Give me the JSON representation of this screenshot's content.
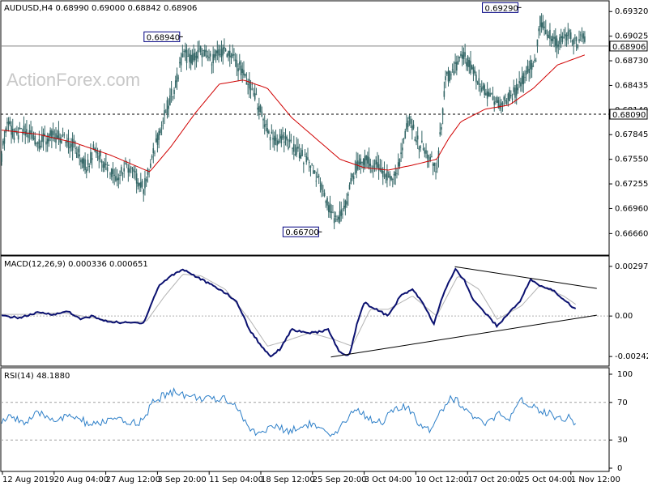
{
  "chart_data": [
    {
      "type": "candlestick",
      "title": "AUDUSD,H4  0.68990 0.69000 0.68842 0.68906",
      "ylim": [
        0.6645,
        0.694
      ],
      "yticks": [
        "0.69320",
        "0.69025",
        "0.68730",
        "0.68435",
        "0.68140",
        "0.67845",
        "0.67550",
        "0.67255",
        "0.66960",
        "0.66660"
      ],
      "hlines": [
        {
          "value": 0.68906,
          "label": "0.68906",
          "style": "solid",
          "color": "#808080"
        },
        {
          "value": 0.6809,
          "label": "0.68090",
          "style": "dashed",
          "color": "#000000"
        }
      ],
      "annotations": [
        {
          "text": "0.68940",
          "x": 0.3,
          "y": 0.6894
        },
        {
          "text": "0.66700",
          "x": 0.53,
          "y": 0.667
        },
        {
          "text": "0.69290",
          "x": 0.86,
          "y": 0.6929
        }
      ],
      "price_anchors": [
        [
          0,
          0.676
        ],
        [
          0.01,
          0.6805
        ],
        [
          0.02,
          0.678
        ],
        [
          0.04,
          0.679
        ],
        [
          0.06,
          0.6775
        ],
        [
          0.08,
          0.6782
        ],
        [
          0.1,
          0.6782
        ],
        [
          0.12,
          0.677
        ],
        [
          0.14,
          0.6745
        ],
        [
          0.155,
          0.677
        ],
        [
          0.17,
          0.675
        ],
        [
          0.19,
          0.6735
        ],
        [
          0.21,
          0.6745
        ],
        [
          0.225,
          0.673
        ],
        [
          0.235,
          0.672
        ],
        [
          0.245,
          0.6745
        ],
        [
          0.26,
          0.6785
        ],
        [
          0.275,
          0.682
        ],
        [
          0.29,
          0.685
        ],
        [
          0.3,
          0.688
        ],
        [
          0.315,
          0.6875
        ],
        [
          0.33,
          0.6885
        ],
        [
          0.345,
          0.6875
        ],
        [
          0.36,
          0.688
        ],
        [
          0.375,
          0.6885
        ],
        [
          0.39,
          0.687
        ],
        [
          0.405,
          0.685
        ],
        [
          0.42,
          0.683
        ],
        [
          0.435,
          0.68
        ],
        [
          0.45,
          0.6775
        ],
        [
          0.465,
          0.678
        ],
        [
          0.48,
          0.677
        ],
        [
          0.495,
          0.676
        ],
        [
          0.51,
          0.675
        ],
        [
          0.525,
          0.673
        ],
        [
          0.54,
          0.67
        ],
        [
          0.555,
          0.668
        ],
        [
          0.57,
          0.67
        ],
        [
          0.58,
          0.6735
        ],
        [
          0.595,
          0.6755
        ],
        [
          0.61,
          0.675
        ],
        [
          0.625,
          0.6745
        ],
        [
          0.64,
          0.6735
        ],
        [
          0.655,
          0.674
        ],
        [
          0.665,
          0.678
        ],
        [
          0.675,
          0.68
        ],
        [
          0.69,
          0.6775
        ],
        [
          0.705,
          0.676
        ],
        [
          0.72,
          0.674
        ],
        [
          0.735,
          0.685
        ],
        [
          0.75,
          0.6865
        ],
        [
          0.765,
          0.688
        ],
        [
          0.78,
          0.686
        ],
        [
          0.795,
          0.684
        ],
        [
          0.81,
          0.683
        ],
        [
          0.825,
          0.682
        ],
        [
          0.84,
          0.683
        ],
        [
          0.855,
          0.684
        ],
        [
          0.87,
          0.686
        ],
        [
          0.885,
          0.688
        ],
        [
          0.89,
          0.692
        ],
        [
          0.905,
          0.6905
        ],
        [
          0.92,
          0.6895
        ],
        [
          0.935,
          0.6905
        ],
        [
          0.95,
          0.6895
        ],
        [
          0.965,
          0.69
        ]
      ],
      "ma_anchors": [
        [
          0,
          0.679
        ],
        [
          0.06,
          0.6785
        ],
        [
          0.12,
          0.6775
        ],
        [
          0.18,
          0.676
        ],
        [
          0.245,
          0.674
        ],
        [
          0.28,
          0.677
        ],
        [
          0.32,
          0.681
        ],
        [
          0.36,
          0.6845
        ],
        [
          0.4,
          0.685
        ],
        [
          0.44,
          0.684
        ],
        [
          0.48,
          0.6805
        ],
        [
          0.52,
          0.678
        ],
        [
          0.56,
          0.6755
        ],
        [
          0.6,
          0.6745
        ],
        [
          0.64,
          0.6742
        ],
        [
          0.68,
          0.6748
        ],
        [
          0.72,
          0.6755
        ],
        [
          0.74,
          0.678
        ],
        [
          0.76,
          0.68
        ],
        [
          0.8,
          0.6815
        ],
        [
          0.84,
          0.682
        ],
        [
          0.88,
          0.684
        ],
        [
          0.92,
          0.6868
        ],
        [
          0.965,
          0.688
        ]
      ]
    },
    {
      "type": "line",
      "title": "MACD(12,26,9) 0.000336 0.000651",
      "ylim": [
        -0.0028,
        0.0033
      ],
      "yticks": [
        "0.00297",
        "0.00",
        "-0.00242"
      ],
      "macd_anchors": [
        [
          0,
          0.0
        ],
        [
          0.03,
          -0.0001
        ],
        [
          0.06,
          0.0002
        ],
        [
          0.09,
          0.0001
        ],
        [
          0.11,
          0.0003
        ],
        [
          0.13,
          -0.0002
        ],
        [
          0.15,
          0.0
        ],
        [
          0.17,
          -0.0003
        ],
        [
          0.2,
          -0.0004
        ],
        [
          0.235,
          -0.0004
        ],
        [
          0.26,
          0.0018
        ],
        [
          0.28,
          0.0024
        ],
        [
          0.3,
          0.0028
        ],
        [
          0.32,
          0.0024
        ],
        [
          0.34,
          0.002
        ],
        [
          0.37,
          0.0014
        ],
        [
          0.39,
          0.0008
        ],
        [
          0.41,
          -0.0008
        ],
        [
          0.43,
          -0.0018
        ],
        [
          0.445,
          -0.0024
        ],
        [
          0.46,
          -0.002
        ],
        [
          0.48,
          -0.0008
        ],
        [
          0.5,
          -0.001
        ],
        [
          0.52,
          -0.001
        ],
        [
          0.54,
          -0.0008
        ],
        [
          0.56,
          -0.0022
        ],
        [
          0.575,
          -0.0024
        ],
        [
          0.59,
          -0.0002
        ],
        [
          0.6,
          0.0008
        ],
        [
          0.62,
          0.0004
        ],
        [
          0.64,
          0.0
        ],
        [
          0.66,
          0.0012
        ],
        [
          0.68,
          0.0016
        ],
        [
          0.7,
          0.0006
        ],
        [
          0.715,
          -0.0005
        ],
        [
          0.73,
          0.0012
        ],
        [
          0.75,
          0.0028
        ],
        [
          0.765,
          0.0022
        ],
        [
          0.78,
          0.001
        ],
        [
          0.8,
          0.0002
        ],
        [
          0.82,
          -0.0006
        ],
        [
          0.84,
          0.0002
        ],
        [
          0.86,
          0.001
        ],
        [
          0.875,
          0.0022
        ],
        [
          0.89,
          0.0018
        ],
        [
          0.91,
          0.0016
        ],
        [
          0.93,
          0.001
        ],
        [
          0.95,
          0.0004
        ]
      ],
      "signal_anchors": [
        [
          0,
          0.0001
        ],
        [
          0.05,
          0.0001
        ],
        [
          0.1,
          0.0002
        ],
        [
          0.15,
          -0.0001
        ],
        [
          0.2,
          -0.0004
        ],
        [
          0.24,
          -0.0003
        ],
        [
          0.27,
          0.0012
        ],
        [
          0.3,
          0.0025
        ],
        [
          0.33,
          0.0024
        ],
        [
          0.37,
          0.0016
        ],
        [
          0.41,
          -0.0002
        ],
        [
          0.44,
          -0.0018
        ],
        [
          0.47,
          -0.0015
        ],
        [
          0.51,
          -0.001
        ],
        [
          0.55,
          -0.0014
        ],
        [
          0.58,
          -0.0018
        ],
        [
          0.61,
          0.0004
        ],
        [
          0.64,
          0.0004
        ],
        [
          0.68,
          0.0012
        ],
        [
          0.72,
          0.0
        ],
        [
          0.755,
          0.0024
        ],
        [
          0.79,
          0.0016
        ],
        [
          0.82,
          -0.0002
        ],
        [
          0.86,
          0.0006
        ],
        [
          0.89,
          0.0018
        ],
        [
          0.93,
          0.0012
        ],
        [
          0.95,
          0.0007
        ]
      ],
      "trendlines": [
        {
          "x1": 0.545,
          "y1": -0.00245,
          "x2": 0.985,
          "y2": 5e-05
        },
        {
          "x1": 0.75,
          "y1": 0.00295,
          "x2": 0.985,
          "y2": 0.00165
        }
      ]
    },
    {
      "type": "line",
      "title": "RSI(14) 48.1880",
      "ylim": [
        0,
        100
      ],
      "yticks": [
        "100",
        "70",
        "30",
        "0"
      ],
      "rsi_anchors": [
        [
          0,
          50
        ],
        [
          0.02,
          55
        ],
        [
          0.04,
          48
        ],
        [
          0.06,
          58
        ],
        [
          0.09,
          52
        ],
        [
          0.12,
          55
        ],
        [
          0.15,
          45
        ],
        [
          0.18,
          52
        ],
        [
          0.21,
          48
        ],
        [
          0.235,
          50
        ],
        [
          0.25,
          70
        ],
        [
          0.27,
          78
        ],
        [
          0.29,
          82
        ],
        [
          0.31,
          76
        ],
        [
          0.33,
          75
        ],
        [
          0.35,
          72
        ],
        [
          0.37,
          75
        ],
        [
          0.39,
          65
        ],
        [
          0.41,
          40
        ],
        [
          0.43,
          38
        ],
        [
          0.45,
          45
        ],
        [
          0.47,
          40
        ],
        [
          0.49,
          42
        ],
        [
          0.51,
          48
        ],
        [
          0.53,
          40
        ],
        [
          0.545,
          32
        ],
        [
          0.56,
          40
        ],
        [
          0.575,
          58
        ],
        [
          0.59,
          62
        ],
        [
          0.61,
          52
        ],
        [
          0.63,
          50
        ],
        [
          0.65,
          62
        ],
        [
          0.67,
          65
        ],
        [
          0.69,
          48
        ],
        [
          0.71,
          42
        ],
        [
          0.725,
          60
        ],
        [
          0.745,
          76
        ],
        [
          0.76,
          68
        ],
        [
          0.78,
          55
        ],
        [
          0.8,
          45
        ],
        [
          0.82,
          58
        ],
        [
          0.84,
          50
        ],
        [
          0.86,
          72
        ],
        [
          0.875,
          68
        ],
        [
          0.89,
          62
        ],
        [
          0.91,
          58
        ],
        [
          0.925,
          52
        ],
        [
          0.94,
          55
        ],
        [
          0.95,
          48
        ]
      ]
    }
  ],
  "x_axis": {
    "labels": [
      "12 Aug 2019",
      "20 Aug 04:00",
      "27 Aug 12:00",
      "3 Sep 20:00",
      "11 Sep 04:00",
      "18 Sep 12:00",
      "25 Sep 20:00",
      "3 Oct 04:00",
      "10 Oct 12:00",
      "17 Oct 20:00",
      "25 Oct 04:00",
      "1 Nov 12:00"
    ]
  },
  "watermark": "ActionForex.com",
  "colors": {
    "price": "#336666",
    "ma": "#d00000",
    "macd": "#0b1170",
    "signal": "#b3b3b3",
    "rsi": "#2d7fc8"
  }
}
